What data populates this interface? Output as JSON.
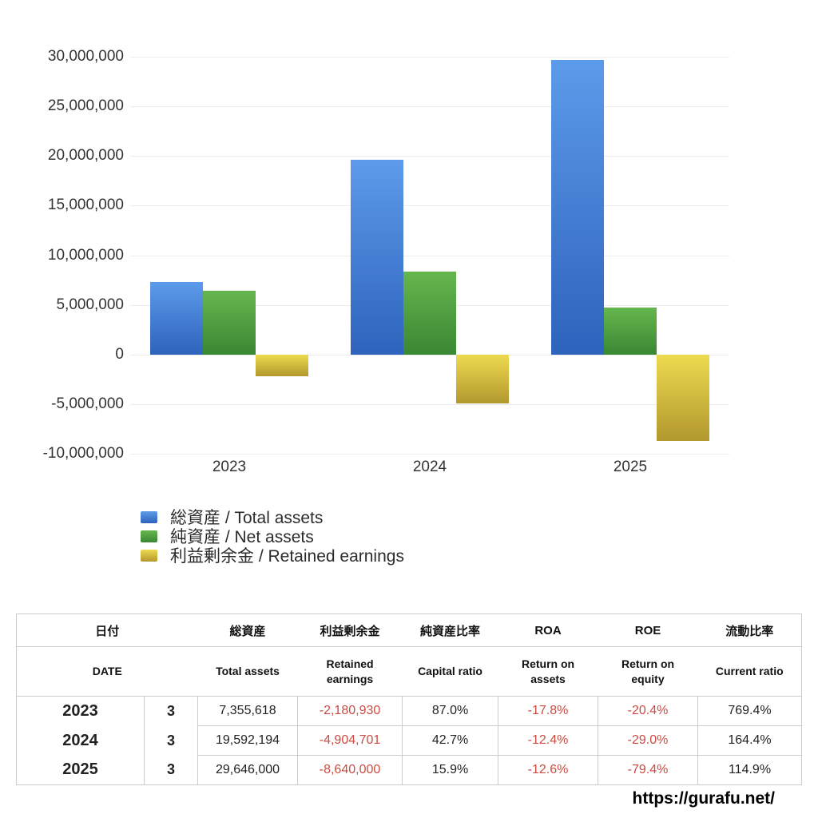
{
  "page": {
    "url_watermark": "https://gurafu.net/"
  },
  "chart_data": {
    "type": "bar",
    "title": "",
    "categories": [
      "2023",
      "2024",
      "2025"
    ],
    "series": [
      {
        "key": "total_assets",
        "name": "総資産 / Total assets",
        "values": [
          7355618,
          19592194,
          29646000
        ],
        "color_top": "#5d9bea",
        "color_bottom": "#2d63bc"
      },
      {
        "key": "net_assets",
        "name": "純資産 / Net assets",
        "values": [
          6399388,
          8365867,
          4713714
        ],
        "color_top": "#66b64e",
        "color_bottom": "#3a8733"
      },
      {
        "key": "retained_earnings",
        "name": "利益剰余金 / Retained earnings",
        "values": [
          -2180930,
          -4904701,
          -8640000
        ],
        "color_top": "#eeda4f",
        "color_bottom": "#b2982e"
      }
    ],
    "ylim": [
      -10000000,
      30000000
    ],
    "yticks": [
      "30,000,000",
      "25,000,000",
      "20,000,000",
      "15,000,000",
      "10,000,000",
      "5,000,000",
      "0",
      "-5,000,000",
      "-10,000,000"
    ],
    "grid": true,
    "legend_position": "below-chart-left",
    "grid_color": "#ececec"
  },
  "table": {
    "header_jp": [
      "日付",
      "総資産",
      "利益剰余金",
      "純資産比率",
      "ROA",
      "ROE",
      "流動比率"
    ],
    "header_en": [
      "DATE",
      "Total assets",
      "Retained\nearnings",
      "Capital ratio",
      "Return on\nassets",
      "Return on\nequity",
      "Current ratio"
    ],
    "rows": [
      [
        "2023",
        "3",
        "7,355,618",
        "-2,180,930",
        "87.0%",
        "-17.8%",
        "-20.4%",
        "769.4%"
      ],
      [
        "2024",
        "3",
        "19,592,194",
        "-4,904,701",
        "42.7%",
        "-12.4%",
        "-29.0%",
        "164.4%"
      ],
      [
        "2025",
        "3",
        "29,646,000",
        "-8,640,000",
        "15.9%",
        "-12.6%",
        "-79.4%",
        "114.9%"
      ]
    ],
    "negative_color": "#cb4b40"
  }
}
